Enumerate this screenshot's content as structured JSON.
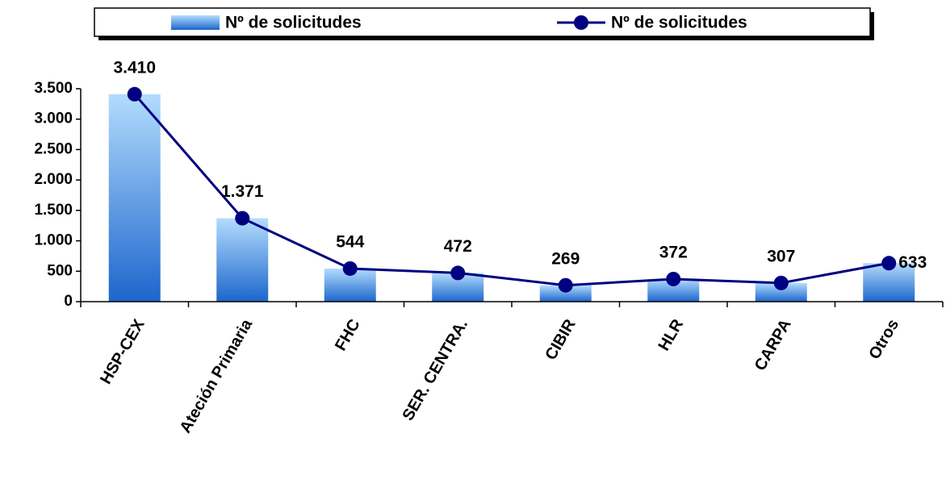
{
  "chart_data": {
    "type": "bar",
    "categories": [
      "HSP-CEX",
      "Ateción Primaria",
      "FHC",
      "SER. CENTRA.",
      "CIBIR",
      "HLR",
      "CARPA",
      "Otros"
    ],
    "series": [
      {
        "name": "Nº de solicitudes",
        "type": "bar",
        "color": "#4a90e2",
        "values": [
          3410,
          1371,
          544,
          472,
          269,
          372,
          307,
          633
        ]
      },
      {
        "name": "Nº de solicitudes",
        "type": "line",
        "color": "#000080",
        "values": [
          3410,
          1371,
          544,
          472,
          269,
          372,
          307,
          633
        ],
        "value_labels": [
          "3.410",
          "1.371",
          "544",
          "472",
          "269",
          "372",
          "307",
          "633"
        ]
      }
    ],
    "ylim": [
      0,
      3500
    ],
    "yticks": [
      0,
      500,
      {
        "value": 1000,
        "label": "1.000"
      },
      {
        "value": 1500,
        "label": "1.500"
      },
      {
        "value": 2000,
        "label": "2.000"
      },
      {
        "value": 2500,
        "label": "2.500"
      },
      {
        "value": 3000,
        "label": "3.000"
      },
      {
        "value": 3500,
        "label": "3.500"
      }
    ],
    "legend": "top"
  }
}
